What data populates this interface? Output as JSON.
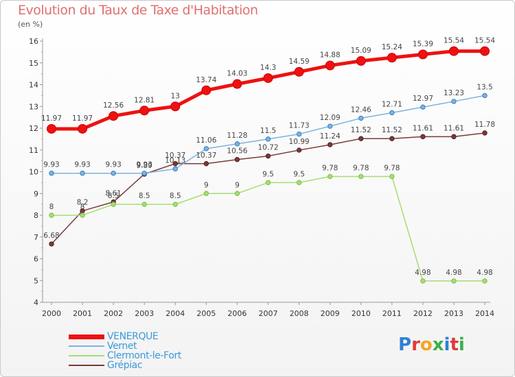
{
  "header": {
    "title": "Evolution du Taux de Taxe d'Habitation",
    "subtitle": "(en %)"
  },
  "logo": {
    "text": "Proxiti",
    "letters": [
      {
        "ch": "P",
        "color": "#2f7fd8"
      },
      {
        "ch": "r",
        "color": "#e03a3a"
      },
      {
        "ch": "o",
        "color": "#f5a623"
      },
      {
        "ch": "x",
        "color": "#3fae49"
      },
      {
        "ch": "i",
        "color": "#2f7fd8"
      },
      {
        "ch": "t",
        "color": "#e03a3a"
      },
      {
        "ch": "i",
        "color": "#3fae49"
      }
    ]
  },
  "chart_data": {
    "type": "line",
    "title": "Evolution du Taux de Taxe d'Habitation",
    "ylabel": "(en %)",
    "xlabel": "",
    "x": [
      "2000",
      "2001",
      "2002",
      "2003",
      "2004",
      "2005",
      "2006",
      "2007",
      "2008",
      "2009",
      "2010",
      "2011",
      "2012",
      "2013",
      "2014"
    ],
    "ylim": [
      4,
      16
    ],
    "yticks": [
      4,
      5,
      6,
      7,
      8,
      9,
      10,
      11,
      12,
      13,
      14,
      15,
      16
    ],
    "grid": false,
    "legend": "bottom-left",
    "series": [
      {
        "name": "VENERQUE",
        "color": "#ee1111",
        "values": [
          11.97,
          11.97,
          12.56,
          12.81,
          13,
          13.74,
          14.03,
          14.3,
          14.59,
          14.88,
          15.09,
          15.24,
          15.39,
          15.54,
          15.54
        ],
        "labels": [
          "11.97",
          "11.97",
          "12.56",
          "12.81",
          "13",
          "13.74",
          "14.03",
          "14.3",
          "14.59",
          "14.88",
          "15.09",
          "15.24",
          "15.39",
          "15.54",
          "15.54"
        ]
      },
      {
        "name": "Vernet",
        "color": "#7db3df",
        "values": [
          9.93,
          9.93,
          9.93,
          9.93,
          10.13,
          11.06,
          11.28,
          11.5,
          11.73,
          12.09,
          12.46,
          12.71,
          12.97,
          13.23,
          13.5
        ],
        "labels": [
          "9.93",
          "9.93",
          "9.93",
          "9.93",
          "10.13",
          "11.06",
          "11.28",
          "11.5",
          "11.73",
          "12.09",
          "12.46",
          "12.71",
          "12.97",
          "13.23",
          "13.5"
        ]
      },
      {
        "name": "Clermont-le-Fort",
        "color": "#a6de72",
        "values": [
          8,
          8,
          8.5,
          8.5,
          8.5,
          9,
          9,
          9.5,
          9.5,
          9.78,
          9.78,
          9.78,
          4.98,
          4.98,
          4.98
        ],
        "labels": [
          "8",
          "8",
          "8.5",
          "8.5",
          "8.5",
          "9",
          "9",
          "9.5",
          "9.5",
          "9.78",
          "9.78",
          "9.78",
          "4.98",
          "4.98",
          "4.98"
        ]
      },
      {
        "name": "Grépiac",
        "color": "#7a3a3a",
        "values": [
          6.68,
          8.2,
          8.61,
          9.89,
          10.37,
          10.37,
          10.56,
          10.72,
          10.99,
          11.24,
          11.52,
          11.52,
          11.61,
          11.61,
          11.78
        ],
        "labels": [
          "6.68",
          "8.2",
          "8.61",
          "9.89",
          "10.37",
          "10.37",
          "10.56",
          "10.72",
          "10.99",
          "11.24",
          "11.52",
          "11.52",
          "11.61",
          "11.61",
          "11.78"
        ]
      }
    ]
  }
}
